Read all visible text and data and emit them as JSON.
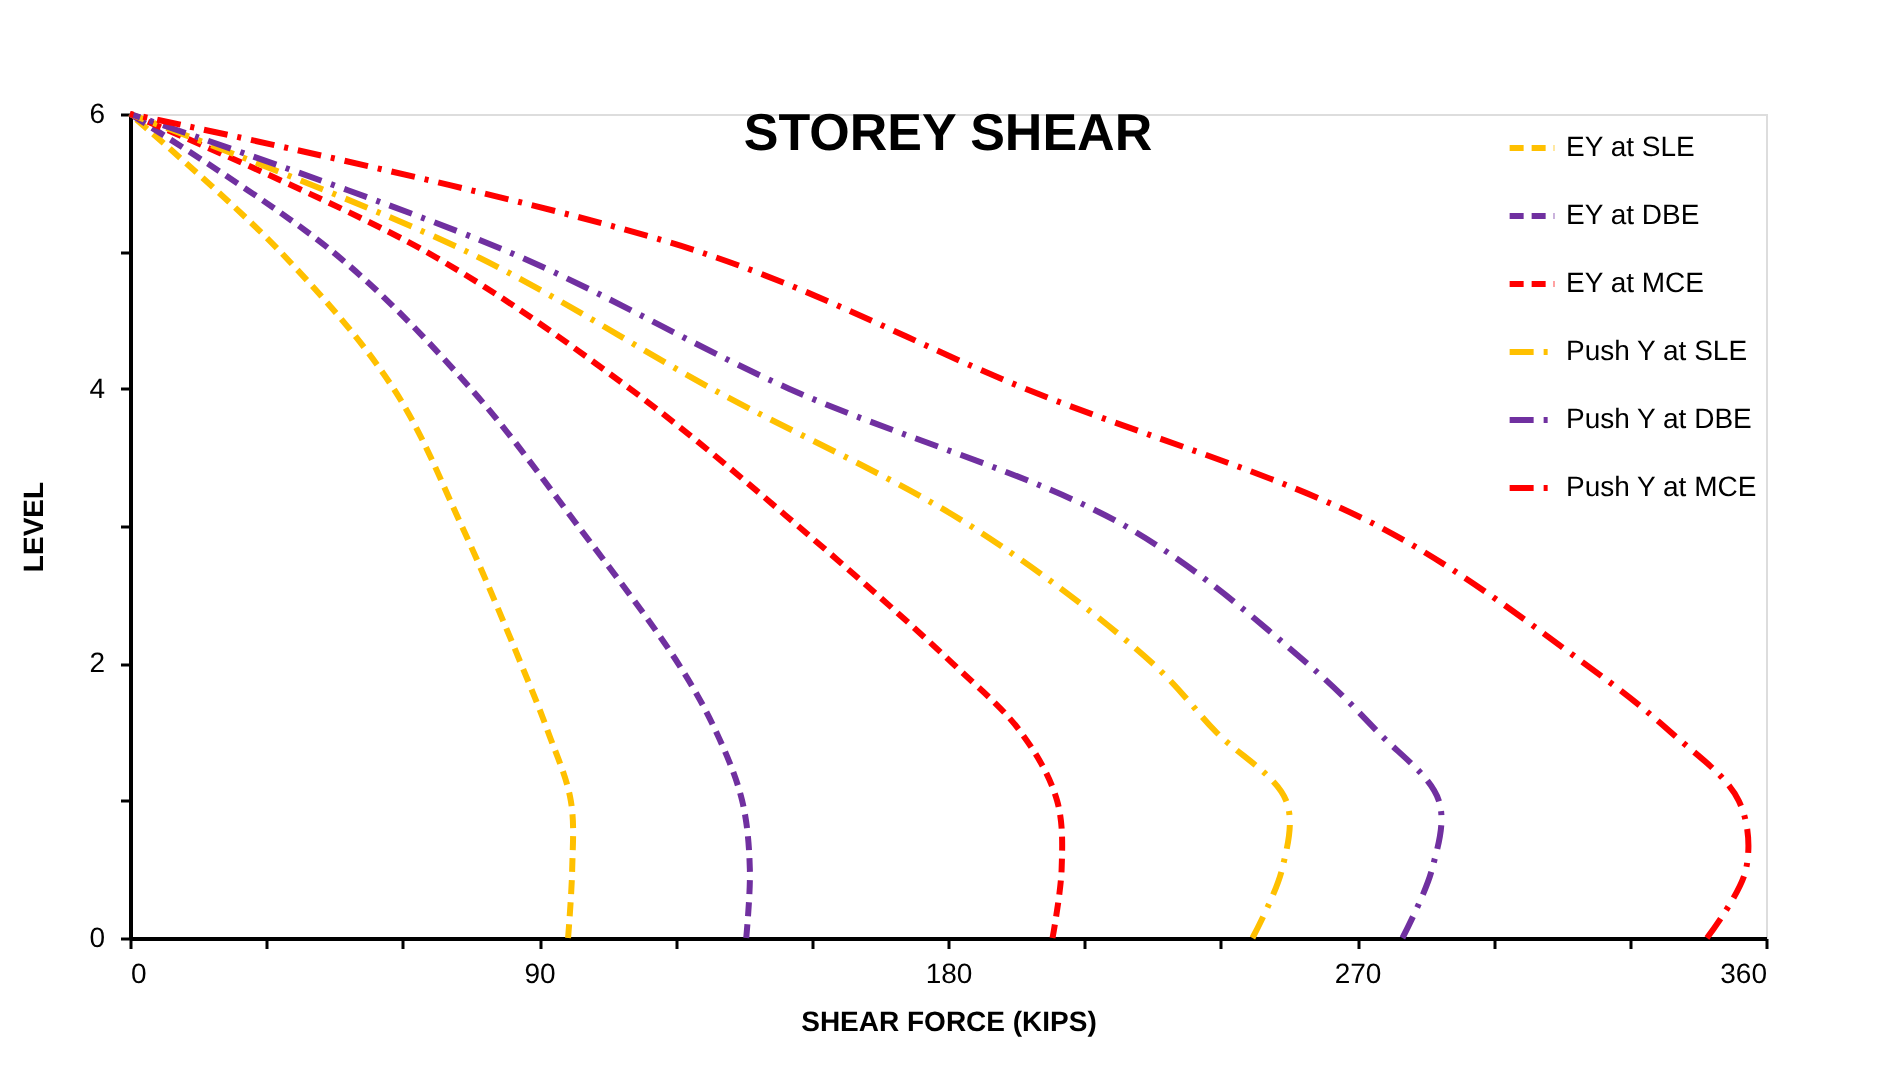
{
  "chart_data": {
    "type": "line",
    "title": "STOREY SHEAR",
    "xlabel": "SHEAR FORCE (KIPS)",
    "ylabel": "LEVEL",
    "xlim": [
      0,
      360
    ],
    "ylim": [
      0,
      6
    ],
    "xticks": [
      0,
      {
        "value": 30,
        "label": null
      },
      {
        "value": 60,
        "label": null
      },
      90,
      {
        "value": 120,
        "label": null
      },
      {
        "value": 150,
        "label": null
      },
      180,
      {
        "value": 210,
        "label": null
      },
      {
        "value": 240,
        "label": null
      },
      270,
      {
        "value": 300,
        "label": null
      },
      {
        "value": 330,
        "label": null
      },
      360
    ],
    "yticks": [
      0,
      {
        "value": 1,
        "label": null
      },
      2,
      {
        "value": 3,
        "label": null
      },
      4,
      {
        "value": 5,
        "label": null
      },
      6
    ],
    "grid": false,
    "legend": "top right",
    "marker": "none",
    "series": [
      {
        "name": "EY at SLE",
        "color": "#ffc000",
        "line_style": "dashed",
        "x": [
          96.4,
          97.3,
          97,
          92,
          86,
          73,
          58,
          33,
          0
        ],
        "values": [
          0,
          0.5,
          1,
          1.5,
          2,
          3,
          4,
          5,
          6
        ]
      },
      {
        "name": "EY at DBE",
        "color": "#7030a0",
        "line_style": "dashed",
        "x": [
          135.6,
          136.4,
          134.7,
          129,
          120.6,
          98.6,
          75,
          44.5,
          0
        ],
        "values": [
          0,
          0.5,
          1,
          1.5,
          2,
          3,
          4,
          5,
          6
        ]
      },
      {
        "name": "EY at MCE",
        "color": "#ff0000",
        "line_style": "dashed",
        "x": [
          203,
          205,
          204,
          196,
          181,
          147,
          110,
          65,
          0
        ],
        "values": [
          0,
          0.5,
          1,
          1.5,
          2,
          3,
          4,
          5,
          6
        ]
      },
      {
        "name": "Push Y at SLE",
        "color": "#ffc000",
        "line_style": "dashdot",
        "x": [
          247,
          253.5,
          254.4,
          239,
          225,
          185,
          128,
          74,
          0
        ],
        "values": [
          0,
          0.5,
          1,
          1.5,
          2,
          3,
          4,
          5,
          6
        ]
      },
      {
        "name": "Push Y at DBE",
        "color": "#7030a0",
        "line_style": "dashdot",
        "x": [
          280,
          286.5,
          288,
          274.6,
          259,
          219,
          145,
          83,
          0
        ],
        "values": [
          0,
          0.5,
          1,
          1.5,
          2,
          3,
          4,
          5,
          6
        ]
      },
      {
        "name": "Push Y at MCE",
        "color": "#ff0000",
        "line_style": "dashdot",
        "x": [
          347,
          355.6,
          354,
          339,
          320,
          274.6,
          197,
          125,
          0
        ],
        "values": [
          0,
          0.5,
          1,
          1.5,
          2,
          3,
          4,
          5,
          6
        ]
      }
    ]
  }
}
